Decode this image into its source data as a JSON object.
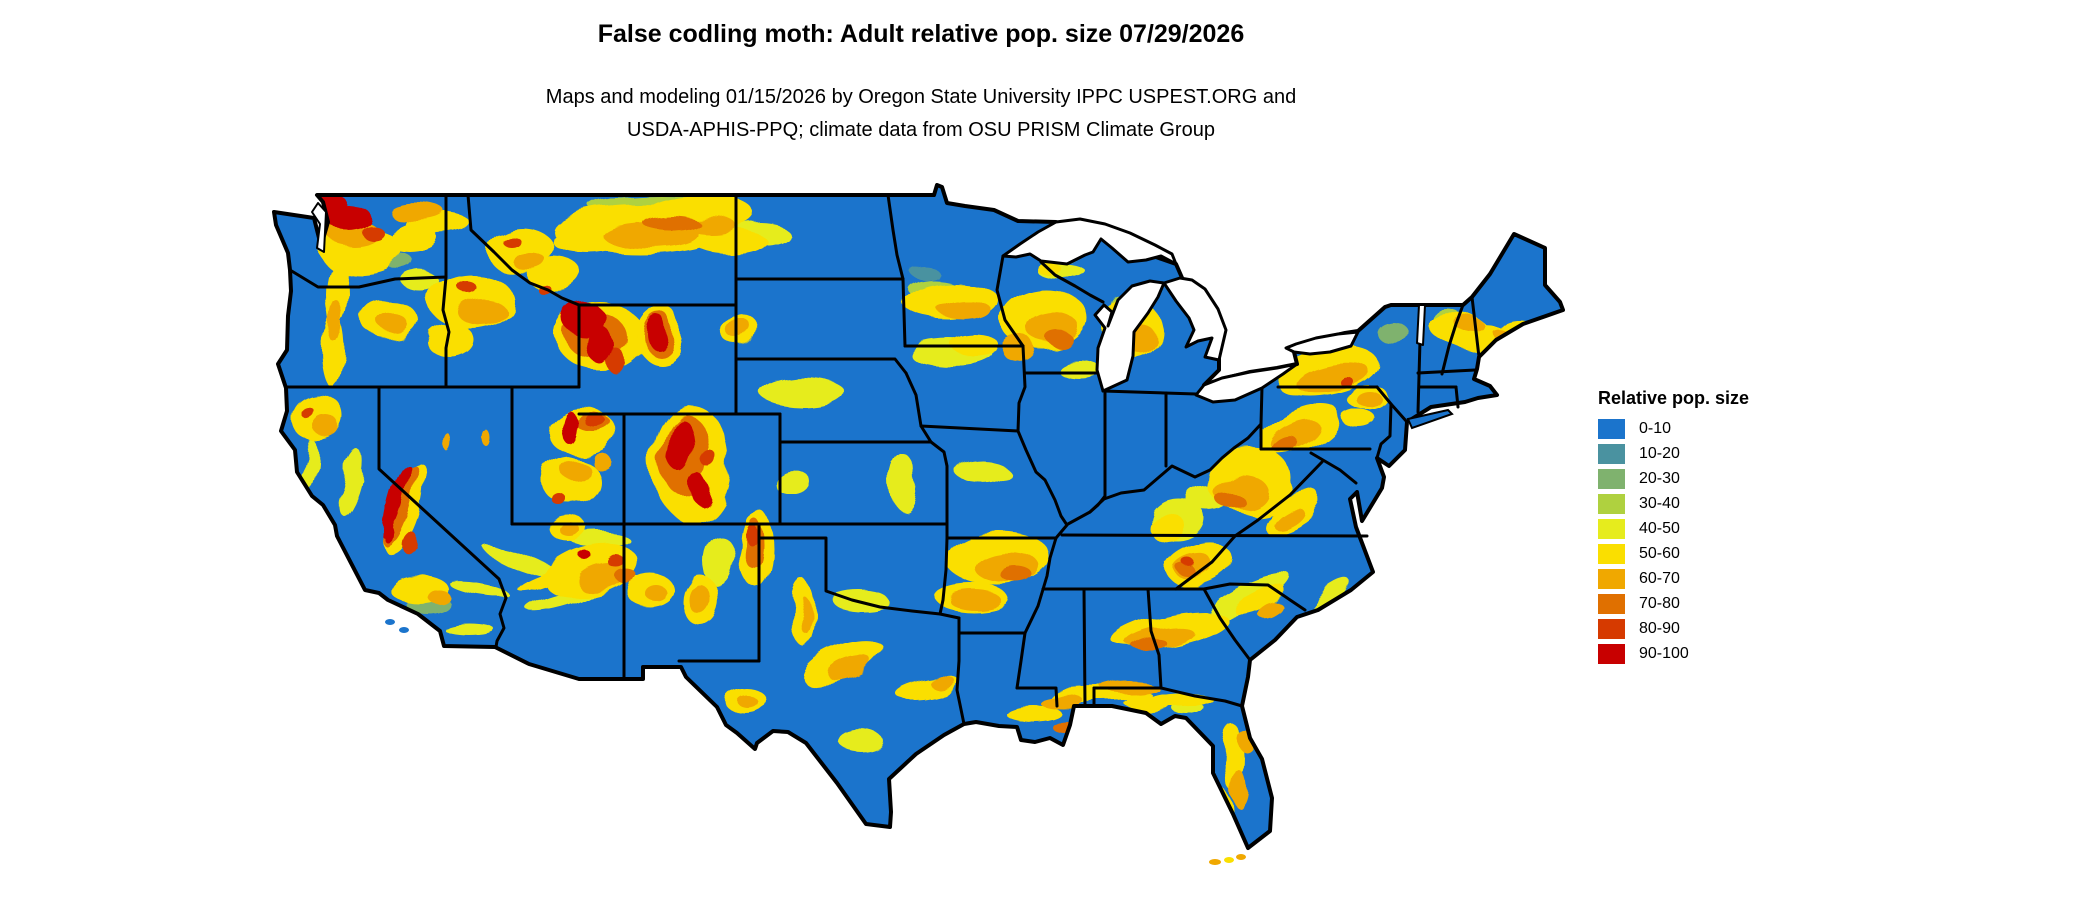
{
  "header": {
    "title": "False codling moth: Adult relative pop. size 07/29/2026",
    "subtitle_line1": "Maps and modeling 01/15/2026 by Oregon State University IPPC USPEST.ORG and",
    "subtitle_line2": "USDA-APHIS-PPQ; climate data from OSU PRISM Climate Group"
  },
  "legend": {
    "title": "Relative pop. size",
    "items": [
      {
        "label": "0-10",
        "color": "#1B74CC"
      },
      {
        "label": "10-20",
        "color": "#4A92A0"
      },
      {
        "label": "20-30",
        "color": "#7FB26E"
      },
      {
        "label": "30-40",
        "color": "#AFD13F"
      },
      {
        "label": "40-50",
        "color": "#E6EC1D"
      },
      {
        "label": "50-60",
        "color": "#FADF00"
      },
      {
        "label": "60-70",
        "color": "#F0A800"
      },
      {
        "label": "70-80",
        "color": "#E07000"
      },
      {
        "label": "80-90",
        "color": "#D63A00"
      },
      {
        "label": "90-100",
        "color": "#C80000"
      }
    ]
  },
  "map": {
    "background": "#FFFFFF",
    "water_color": "#FFFFFF",
    "outline_color": "#000000",
    "patches": [
      [
        1,
        692,
        199,
        38,
        7,
        0
      ],
      [
        1,
        922,
        270,
        14,
        6,
        0
      ],
      [
        2,
        612,
        220,
        28,
        9,
        0
      ],
      [
        2,
        400,
        262,
        14,
        8,
        0
      ],
      [
        2,
        1392,
        332,
        16,
        11,
        0
      ],
      [
        2,
        430,
        606,
        22,
        10,
        0
      ],
      [
        2,
        1060,
        255,
        18,
        7,
        0
      ],
      [
        3,
        660,
        207,
        70,
        12,
        0
      ],
      [
        3,
        930,
        286,
        25,
        10,
        0
      ],
      [
        3,
        1030,
        305,
        18,
        10,
        0
      ],
      [
        3,
        990,
        548,
        18,
        8,
        0
      ],
      [
        3,
        1128,
        310,
        12,
        10,
        0
      ],
      [
        3,
        1445,
        315,
        14,
        8,
        0
      ],
      [
        3,
        1265,
        470,
        14,
        9,
        0
      ],
      [
        3,
        715,
        482,
        9,
        18,
        0
      ],
      [
        4,
        760,
        233,
        28,
        11,
        0
      ],
      [
        4,
        420,
        281,
        18,
        10,
        0
      ],
      [
        4,
        904,
        483,
        13,
        28,
        0
      ],
      [
        4,
        800,
        390,
        42,
        16,
        0
      ],
      [
        4,
        790,
        480,
        18,
        13,
        0
      ],
      [
        4,
        950,
        352,
        42,
        13,
        0
      ],
      [
        4,
        1080,
        370,
        22,
        9,
        0
      ],
      [
        4,
        1060,
        270,
        24,
        8,
        0
      ],
      [
        4,
        310,
        470,
        8,
        28,
        10
      ],
      [
        4,
        350,
        482,
        9,
        33,
        15
      ],
      [
        4,
        720,
        562,
        16,
        26,
        0
      ],
      [
        4,
        860,
        600,
        28,
        9,
        0
      ],
      [
        4,
        860,
        740,
        22,
        11,
        0
      ],
      [
        4,
        1180,
        522,
        28,
        22,
        0
      ],
      [
        4,
        1210,
        500,
        22,
        13,
        0
      ],
      [
        4,
        1250,
        596,
        46,
        13,
        -25
      ],
      [
        4,
        1290,
        642,
        26,
        9,
        -30
      ],
      [
        4,
        1330,
        600,
        28,
        9,
        -40
      ],
      [
        4,
        1280,
        650,
        22,
        9,
        -35
      ],
      [
        4,
        1190,
        710,
        16,
        7,
        0
      ],
      [
        4,
        980,
        470,
        26,
        12,
        0
      ],
      [
        4,
        520,
        560,
        40,
        8,
        20
      ],
      [
        4,
        560,
        600,
        35,
        7,
        -15
      ],
      [
        4,
        480,
        590,
        30,
        6,
        10
      ],
      [
        4,
        600,
        540,
        30,
        7,
        0
      ],
      [
        4,
        470,
        630,
        25,
        6,
        0
      ],
      [
        5,
        640,
        230,
        88,
        25,
        0
      ],
      [
        5,
        700,
        214,
        55,
        18,
        0
      ],
      [
        5,
        590,
        240,
        38,
        15,
        0
      ],
      [
        5,
        730,
        241,
        36,
        13,
        0
      ],
      [
        5,
        520,
        250,
        34,
        24,
        0
      ],
      [
        5,
        556,
        276,
        28,
        17,
        0
      ],
      [
        5,
        360,
        250,
        42,
        24,
        0
      ],
      [
        5,
        412,
        240,
        28,
        14,
        0
      ],
      [
        5,
        440,
        226,
        33,
        11,
        0
      ],
      [
        5,
        335,
        292,
        12,
        33,
        0
      ],
      [
        5,
        333,
        350,
        11,
        38,
        0
      ],
      [
        5,
        390,
        320,
        28,
        19,
        0
      ],
      [
        5,
        470,
        300,
        43,
        28,
        0
      ],
      [
        5,
        450,
        340,
        24,
        17,
        0
      ],
      [
        5,
        600,
        336,
        44,
        34,
        0
      ],
      [
        5,
        658,
        333,
        24,
        29,
        0
      ],
      [
        5,
        741,
        331,
        17,
        19,
        0
      ],
      [
        5,
        580,
        430,
        34,
        24,
        0
      ],
      [
        5,
        570,
        480,
        29,
        24,
        0
      ],
      [
        5,
        690,
        462,
        38,
        58,
        0
      ],
      [
        5,
        405,
        508,
        18,
        50,
        15
      ],
      [
        5,
        320,
        420,
        27,
        24,
        0
      ],
      [
        5,
        420,
        590,
        29,
        15,
        0
      ],
      [
        5,
        590,
        570,
        48,
        24,
        -15
      ],
      [
        5,
        570,
        530,
        19,
        13,
        0
      ],
      [
        5,
        758,
        550,
        17,
        40,
        0
      ],
      [
        5,
        650,
        590,
        24,
        17,
        0
      ],
      [
        5,
        702,
        602,
        19,
        25,
        0
      ],
      [
        5,
        840,
        660,
        44,
        19,
        -20
      ],
      [
        5,
        800,
        610,
        12,
        33,
        0
      ],
      [
        5,
        745,
        700,
        21,
        13,
        0
      ],
      [
        5,
        1000,
        560,
        53,
        28,
        0
      ],
      [
        5,
        972,
        598,
        36,
        13,
        0
      ],
      [
        5,
        950,
        300,
        48,
        21,
        0
      ],
      [
        5,
        1045,
        320,
        44,
        31,
        0
      ],
      [
        5,
        975,
        345,
        24,
        10,
        0
      ],
      [
        5,
        1135,
        330,
        27,
        29,
        0
      ],
      [
        5,
        1048,
        268,
        12,
        6,
        0
      ],
      [
        5,
        1325,
        370,
        53,
        23,
        -10
      ],
      [
        5,
        1368,
        398,
        21,
        13,
        0
      ],
      [
        5,
        1300,
        430,
        43,
        19,
        -25
      ],
      [
        5,
        1360,
        420,
        17,
        9,
        0
      ],
      [
        5,
        1460,
        330,
        33,
        17,
        15
      ],
      [
        5,
        1500,
        340,
        24,
        11,
        25
      ],
      [
        5,
        1520,
        330,
        19,
        9,
        0
      ],
      [
        5,
        1250,
        480,
        43,
        33,
        0
      ],
      [
        5,
        1290,
        510,
        33,
        14,
        -30
      ],
      [
        5,
        1200,
        565,
        33,
        17,
        -20
      ],
      [
        5,
        1170,
        530,
        19,
        14,
        0
      ],
      [
        5,
        1170,
        630,
        58,
        15,
        -12
      ],
      [
        5,
        1100,
        695,
        52,
        8,
        0
      ],
      [
        5,
        1180,
        700,
        33,
        8,
        0
      ],
      [
        5,
        1030,
        710,
        28,
        8,
        0
      ],
      [
        5,
        1235,
        760,
        12,
        33,
        0
      ],
      [
        5,
        1222,
        810,
        10,
        21,
        0
      ],
      [
        5,
        1150,
        705,
        24,
        7,
        0
      ],
      [
        5,
        930,
        690,
        33,
        9,
        -10
      ],
      [
        5,
        1260,
        600,
        28,
        9,
        -25
      ],
      [
        5,
        540,
        580,
        25,
        6,
        -20
      ],
      [
        6,
        650,
        235,
        48,
        13,
        0
      ],
      [
        6,
        710,
        225,
        26,
        9,
        0
      ],
      [
        6,
        530,
        262,
        17,
        9,
        0
      ],
      [
        6,
        350,
        230,
        26,
        13,
        0
      ],
      [
        6,
        334,
        320,
        7,
        22,
        0
      ],
      [
        6,
        395,
        325,
        14,
        9,
        0
      ],
      [
        6,
        480,
        310,
        24,
        14,
        0
      ],
      [
        6,
        740,
        330,
        11,
        13,
        0
      ],
      [
        6,
        575,
        470,
        14,
        11,
        0
      ],
      [
        6,
        600,
        460,
        10,
        8,
        0
      ],
      [
        6,
        330,
        430,
        13,
        11,
        0
      ],
      [
        6,
        440,
        598,
        11,
        7,
        0
      ],
      [
        6,
        600,
        575,
        26,
        13,
        -15
      ],
      [
        6,
        572,
        532,
        10,
        7,
        0
      ],
      [
        6,
        655,
        592,
        11,
        8,
        0
      ],
      [
        6,
        700,
        600,
        11,
        15,
        0
      ],
      [
        6,
        850,
        668,
        23,
        9,
        -20
      ],
      [
        6,
        802,
        612,
        6,
        18,
        0
      ],
      [
        6,
        748,
        702,
        10,
        6,
        0
      ],
      [
        6,
        1010,
        570,
        33,
        16,
        0
      ],
      [
        6,
        975,
        600,
        26,
        9,
        0
      ],
      [
        6,
        965,
        310,
        26,
        11,
        0
      ],
      [
        6,
        1055,
        330,
        26,
        16,
        0
      ],
      [
        6,
        1020,
        350,
        17,
        13,
        0
      ],
      [
        6,
        1142,
        340,
        15,
        15,
        0
      ],
      [
        6,
        1330,
        375,
        38,
        14,
        -10
      ],
      [
        6,
        1370,
        400,
        13,
        8,
        0
      ],
      [
        6,
        1295,
        435,
        26,
        11,
        -25
      ],
      [
        6,
        1470,
        325,
        17,
        8,
        15
      ],
      [
        6,
        1505,
        338,
        12,
        6,
        25
      ],
      [
        6,
        1240,
        490,
        26,
        18,
        0
      ],
      [
        6,
        1285,
        515,
        17,
        7,
        -30
      ],
      [
        6,
        1195,
        568,
        19,
        9,
        -20
      ],
      [
        6,
        1160,
        638,
        33,
        9,
        -12
      ],
      [
        6,
        1130,
        688,
        28,
        6,
        0
      ],
      [
        6,
        1060,
        700,
        23,
        6,
        0
      ],
      [
        6,
        1240,
        790,
        9,
        18,
        0
      ],
      [
        6,
        1250,
        745,
        8,
        11,
        0
      ],
      [
        6,
        445,
        440,
        4,
        9,
        0
      ],
      [
        6,
        488,
        440,
        4,
        8,
        0
      ],
      [
        6,
        420,
        215,
        28,
        9,
        0
      ],
      [
        6,
        945,
        685,
        14,
        6,
        0
      ],
      [
        6,
        1270,
        610,
        13,
        6,
        -25
      ],
      [
        7,
        670,
        222,
        28,
        8,
        0
      ],
      [
        7,
        595,
        335,
        30,
        24,
        0
      ],
      [
        7,
        657,
        332,
        16,
        22,
        0
      ],
      [
        7,
        685,
        455,
        24,
        42,
        0
      ],
      [
        7,
        400,
        505,
        13,
        45,
        15
      ],
      [
        7,
        625,
        575,
        11,
        7,
        0
      ],
      [
        7,
        755,
        545,
        9,
        26,
        0
      ],
      [
        7,
        1020,
        578,
        16,
        8,
        0
      ],
      [
        7,
        1063,
        342,
        13,
        7,
        0
      ],
      [
        7,
        1285,
        445,
        13,
        7,
        -25
      ],
      [
        7,
        1230,
        500,
        13,
        9,
        0
      ],
      [
        7,
        1188,
        572,
        9,
        5,
        0
      ],
      [
        7,
        1150,
        645,
        16,
        6,
        -12
      ],
      [
        7,
        1063,
        725,
        13,
        6,
        0
      ],
      [
        7,
        590,
        420,
        18,
        9,
        0
      ],
      [
        8,
        510,
        240,
        9,
        6,
        0
      ],
      [
        8,
        545,
        290,
        7,
        5,
        0
      ],
      [
        8,
        370,
        230,
        11,
        7,
        0
      ],
      [
        8,
        465,
        285,
        9,
        6,
        0
      ],
      [
        8,
        615,
        360,
        9,
        13,
        0
      ],
      [
        8,
        592,
        418,
        11,
        6,
        0
      ],
      [
        8,
        710,
        460,
        8,
        9,
        0
      ],
      [
        8,
        560,
        500,
        7,
        6,
        0
      ],
      [
        8,
        412,
        545,
        7,
        11,
        15
      ],
      [
        8,
        310,
        415,
        7,
        6,
        0
      ],
      [
        8,
        615,
        560,
        9,
        6,
        0
      ],
      [
        8,
        752,
        535,
        6,
        11,
        0
      ],
      [
        8,
        1345,
        380,
        7,
        5,
        0
      ],
      [
        8,
        1192,
        566,
        6,
        4,
        0
      ],
      [
        9,
        345,
        215,
        24,
        13,
        0
      ],
      [
        9,
        330,
        200,
        14,
        8,
        0
      ],
      [
        9,
        585,
        320,
        21,
        17,
        0
      ],
      [
        9,
        600,
        345,
        13,
        19,
        0
      ],
      [
        9,
        655,
        330,
        11,
        17,
        0
      ],
      [
        9,
        567,
        425,
        8,
        17,
        0
      ],
      [
        9,
        680,
        445,
        13,
        28,
        0
      ],
      [
        9,
        700,
        490,
        9,
        14,
        0
      ],
      [
        9,
        395,
        500,
        9,
        40,
        15
      ],
      [
        9,
        585,
        555,
        6,
        5,
        0
      ],
      [
        9,
        390,
        535,
        5,
        10,
        0
      ]
    ]
  }
}
